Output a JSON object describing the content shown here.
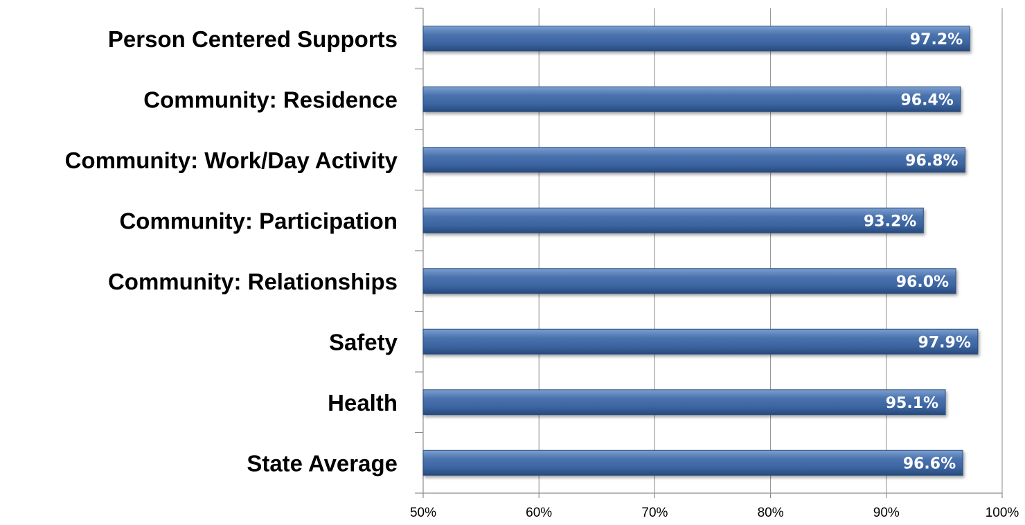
{
  "chart_data": {
    "type": "bar",
    "orientation": "horizontal",
    "title": "",
    "xlabel": "",
    "ylabel": "",
    "categories": [
      "Person Centered Supports",
      "Community:  Residence",
      "Community: Work/Day Activity",
      "Community: Participation",
      "Community: Relationships",
      "Safety",
      "Health",
      "State Average"
    ],
    "values": [
      97.2,
      96.4,
      96.8,
      93.2,
      96.0,
      97.9,
      95.1,
      96.6
    ],
    "data_labels": [
      "97.2%",
      "96.4%",
      "96.8%",
      "93.2%",
      "96.0%",
      "97.9%",
      "95.1%",
      "96.6%"
    ],
    "xlim": [
      50,
      100
    ],
    "x_ticks": [
      50,
      60,
      70,
      80,
      90,
      100
    ],
    "x_tick_labels": [
      "50%",
      "60%",
      "70%",
      "80%",
      "90%",
      "100%"
    ],
    "grid": "vertical",
    "legend": "none",
    "bar_color": "#3b64a0"
  }
}
